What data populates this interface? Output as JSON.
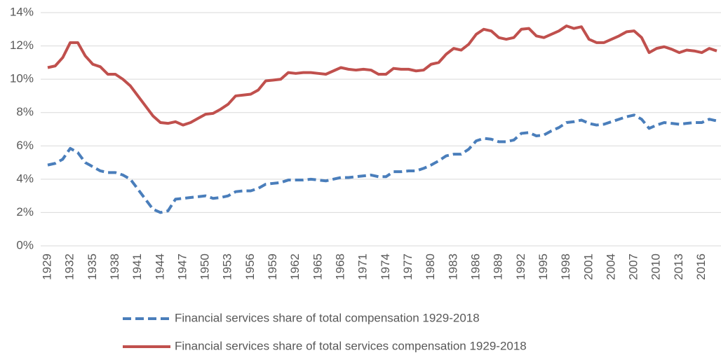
{
  "chart_data": {
    "type": "line",
    "x": [
      1929,
      1930,
      1931,
      1932,
      1933,
      1934,
      1935,
      1936,
      1937,
      1938,
      1939,
      1940,
      1941,
      1942,
      1943,
      1944,
      1945,
      1946,
      1947,
      1948,
      1949,
      1950,
      1951,
      1952,
      1953,
      1954,
      1955,
      1956,
      1957,
      1958,
      1959,
      1960,
      1961,
      1962,
      1963,
      1964,
      1965,
      1966,
      1967,
      1968,
      1969,
      1970,
      1971,
      1972,
      1973,
      1974,
      1975,
      1976,
      1977,
      1978,
      1979,
      1980,
      1981,
      1982,
      1983,
      1984,
      1985,
      1986,
      1987,
      1988,
      1989,
      1990,
      1991,
      1992,
      1993,
      1994,
      1995,
      1996,
      1997,
      1998,
      1999,
      2000,
      2001,
      2002,
      2003,
      2004,
      2005,
      2006,
      2007,
      2008,
      2009,
      2010,
      2011,
      2012,
      2013,
      2014,
      2015,
      2016,
      2017,
      2018
    ],
    "series": [
      {
        "name": "Financial services share of total compensation 1929-2018",
        "color": "#4a7ebb",
        "dashed": true,
        "values": [
          4.85,
          4.95,
          5.2,
          5.85,
          5.6,
          5.0,
          4.75,
          4.5,
          4.4,
          4.4,
          4.25,
          4.0,
          3.4,
          2.8,
          2.2,
          2.0,
          2.1,
          2.8,
          2.85,
          2.9,
          2.95,
          3.0,
          2.85,
          2.9,
          3.0,
          3.25,
          3.3,
          3.3,
          3.45,
          3.7,
          3.75,
          3.8,
          3.95,
          3.95,
          3.95,
          4.0,
          3.95,
          3.9,
          4.0,
          4.1,
          4.1,
          4.15,
          4.2,
          4.25,
          4.15,
          4.15,
          4.45,
          4.45,
          4.5,
          4.5,
          4.65,
          4.85,
          5.1,
          5.4,
          5.5,
          5.5,
          5.8,
          6.3,
          6.45,
          6.4,
          6.25,
          6.25,
          6.35,
          6.75,
          6.8,
          6.6,
          6.65,
          6.9,
          7.1,
          7.4,
          7.45,
          7.55,
          7.35,
          7.25,
          7.3,
          7.45,
          7.6,
          7.75,
          7.85,
          7.6,
          7.05,
          7.25,
          7.4,
          7.35,
          7.3,
          7.35,
          7.4,
          7.4,
          7.6,
          7.5
        ]
      },
      {
        "name": "Financial services share of total services compensation 1929-2018",
        "color": "#c0504d",
        "dashed": false,
        "values": [
          10.7,
          10.8,
          11.3,
          12.2,
          12.2,
          11.4,
          10.9,
          10.75,
          10.3,
          10.3,
          10.0,
          9.6,
          9.0,
          8.4,
          7.8,
          7.4,
          7.35,
          7.45,
          7.25,
          7.4,
          7.65,
          7.9,
          7.95,
          8.2,
          8.5,
          9.0,
          9.05,
          9.1,
          9.35,
          9.9,
          9.95,
          10.0,
          10.4,
          10.35,
          10.4,
          10.4,
          10.35,
          10.3,
          10.5,
          10.7,
          10.6,
          10.55,
          10.6,
          10.55,
          10.3,
          10.3,
          10.65,
          10.6,
          10.6,
          10.5,
          10.55,
          10.9,
          11.0,
          11.5,
          11.85,
          11.75,
          12.1,
          12.7,
          13.0,
          12.9,
          12.5,
          12.4,
          12.5,
          13.0,
          13.05,
          12.6,
          12.5,
          12.7,
          12.9,
          13.2,
          13.05,
          13.15,
          12.4,
          12.2,
          12.2,
          12.4,
          12.6,
          12.85,
          12.9,
          12.5,
          11.6,
          11.85,
          11.95,
          11.8,
          11.6,
          11.75,
          11.7,
          11.6,
          11.85,
          11.7
        ]
      }
    ],
    "xlim": [
      1929,
      2018
    ],
    "xticks": [
      1929,
      1932,
      1935,
      1938,
      1941,
      1944,
      1947,
      1950,
      1953,
      1956,
      1959,
      1962,
      1965,
      1968,
      1971,
      1974,
      1977,
      1980,
      1983,
      1986,
      1989,
      1992,
      1995,
      1998,
      2001,
      2004,
      2007,
      2010,
      2013,
      2016
    ],
    "ylim": [
      0,
      14
    ],
    "yticks": [
      {
        "value": 0,
        "label": "0%"
      },
      {
        "value": 2,
        "label": "2%"
      },
      {
        "value": 4,
        "label": "4%"
      },
      {
        "value": 6,
        "label": "6%"
      },
      {
        "value": 8,
        "label": "8%"
      },
      {
        "value": 10,
        "label": "10%"
      },
      {
        "value": 12,
        "label": "12%"
      },
      {
        "value": 14,
        "label": "14%"
      }
    ],
    "grid": true,
    "legend": "bottom"
  }
}
